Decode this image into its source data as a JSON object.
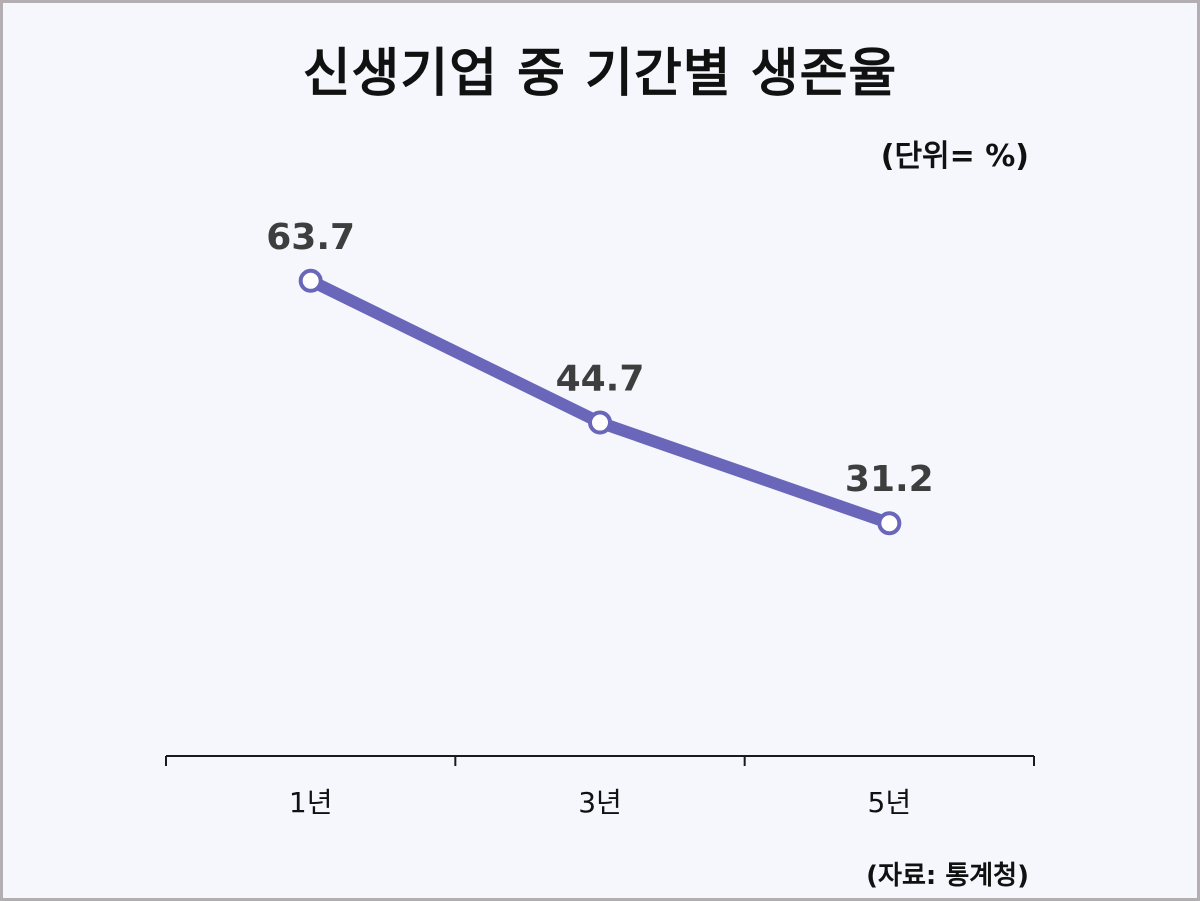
{
  "chart_data": {
    "type": "line",
    "title": "신생기업 중 기간별 생존율",
    "unit_note": "(단위= %)",
    "source_note": "(자료: 통계청)",
    "categories": [
      "1년",
      "3년",
      "5년"
    ],
    "series": [
      {
        "values": [
          63.7,
          44.7,
          31.2
        ],
        "data_labels": [
          "63.7",
          "44.7",
          "31.2"
        ]
      }
    ],
    "xlabel": "",
    "ylabel": "",
    "ylim": [
      0,
      100
    ],
    "grid": false,
    "legend": "none",
    "colors": {
      "line": "#6a66b9",
      "marker_fill": "#ffffff",
      "axis": "#1a1a1a",
      "background": "#f5f7fd"
    }
  }
}
